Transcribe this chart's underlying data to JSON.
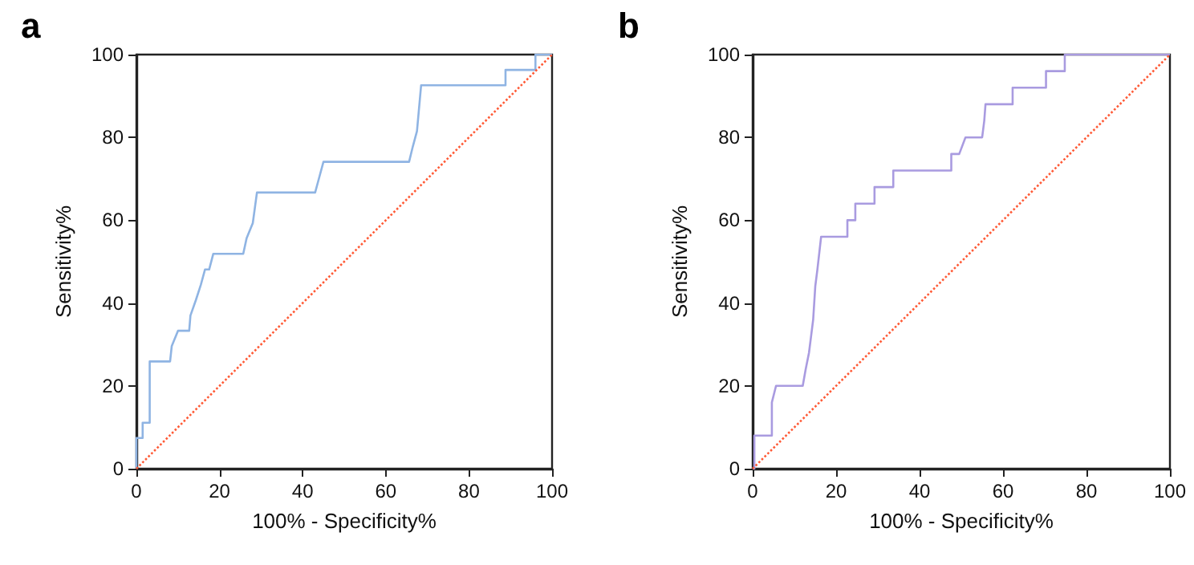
{
  "chart_data": [
    {
      "type": "line",
      "title": "a",
      "xlabel": "100% - Specificity%",
      "ylabel": "Sensitivity%",
      "xlim": [
        0,
        100
      ],
      "ylim": [
        0,
        100
      ],
      "xticks": [
        0,
        20,
        40,
        60,
        80,
        100
      ],
      "yticks": [
        0,
        20,
        40,
        60,
        80,
        100
      ],
      "grid": false,
      "marker": "none",
      "series": [
        {
          "color": "#8fb4e3",
          "line_style": "solid",
          "x": [
            0,
            0,
            1.5,
            1.5,
            3.2,
            3.2,
            8.1,
            8.5,
            10,
            12.7,
            13,
            14.3,
            15.5,
            16.5,
            17.5,
            18.5,
            25.7,
            26.5,
            28,
            29,
            43,
            44,
            45,
            65.6,
            66.5,
            67.5,
            68.5,
            88.8,
            88.8,
            96,
            96,
            100
          ],
          "values": [
            0,
            7.4,
            7.4,
            11.1,
            11.1,
            25.9,
            25.9,
            29.6,
            33.3,
            33.3,
            37,
            40.7,
            44.4,
            48.1,
            48.1,
            51.9,
            51.9,
            55.6,
            59.3,
            66.7,
            66.7,
            70.4,
            74.1,
            74.1,
            77.8,
            81.5,
            92.6,
            92.6,
            96.3,
            96.3,
            100,
            100
          ]
        },
        {
          "color": "#ff5a36",
          "line_style": "dotted",
          "x": [
            0,
            100
          ],
          "values": [
            0,
            100
          ]
        }
      ]
    },
    {
      "type": "line",
      "title": "b",
      "xlabel": "100% - Specificity%",
      "ylabel": "Sensitivity%",
      "xlim": [
        0,
        100
      ],
      "ylim": [
        0,
        100
      ],
      "xticks": [
        0,
        20,
        40,
        60,
        80,
        100
      ],
      "yticks": [
        0,
        20,
        40,
        60,
        80,
        100
      ],
      "grid": false,
      "marker": "none",
      "series": [
        {
          "color": "#a99be0",
          "line_style": "solid",
          "x": [
            0,
            0.4,
            0.4,
            4.6,
            4.6,
            5.6,
            12,
            12.7,
            13.5,
            14,
            14.5,
            15,
            15.5,
            16.4,
            22.7,
            22.7,
            24.6,
            24.6,
            29.2,
            29.2,
            33.7,
            33.7,
            47.6,
            47.6,
            49.5,
            51,
            55,
            55.5,
            55.8,
            62.3,
            62.3,
            70.3,
            70.3,
            74.8,
            74.8,
            100
          ],
          "values": [
            0,
            0,
            8,
            8,
            16,
            20,
            20,
            24,
            28,
            32,
            36,
            44,
            48,
            56,
            56,
            60,
            60,
            64,
            64,
            68,
            68,
            72,
            72,
            76,
            76,
            80,
            80,
            84,
            88,
            88,
            92,
            92,
            96,
            96,
            100,
            100
          ]
        },
        {
          "color": "#ff5a36",
          "line_style": "dotted",
          "x": [
            0,
            100
          ],
          "values": [
            0,
            100
          ]
        }
      ]
    }
  ]
}
